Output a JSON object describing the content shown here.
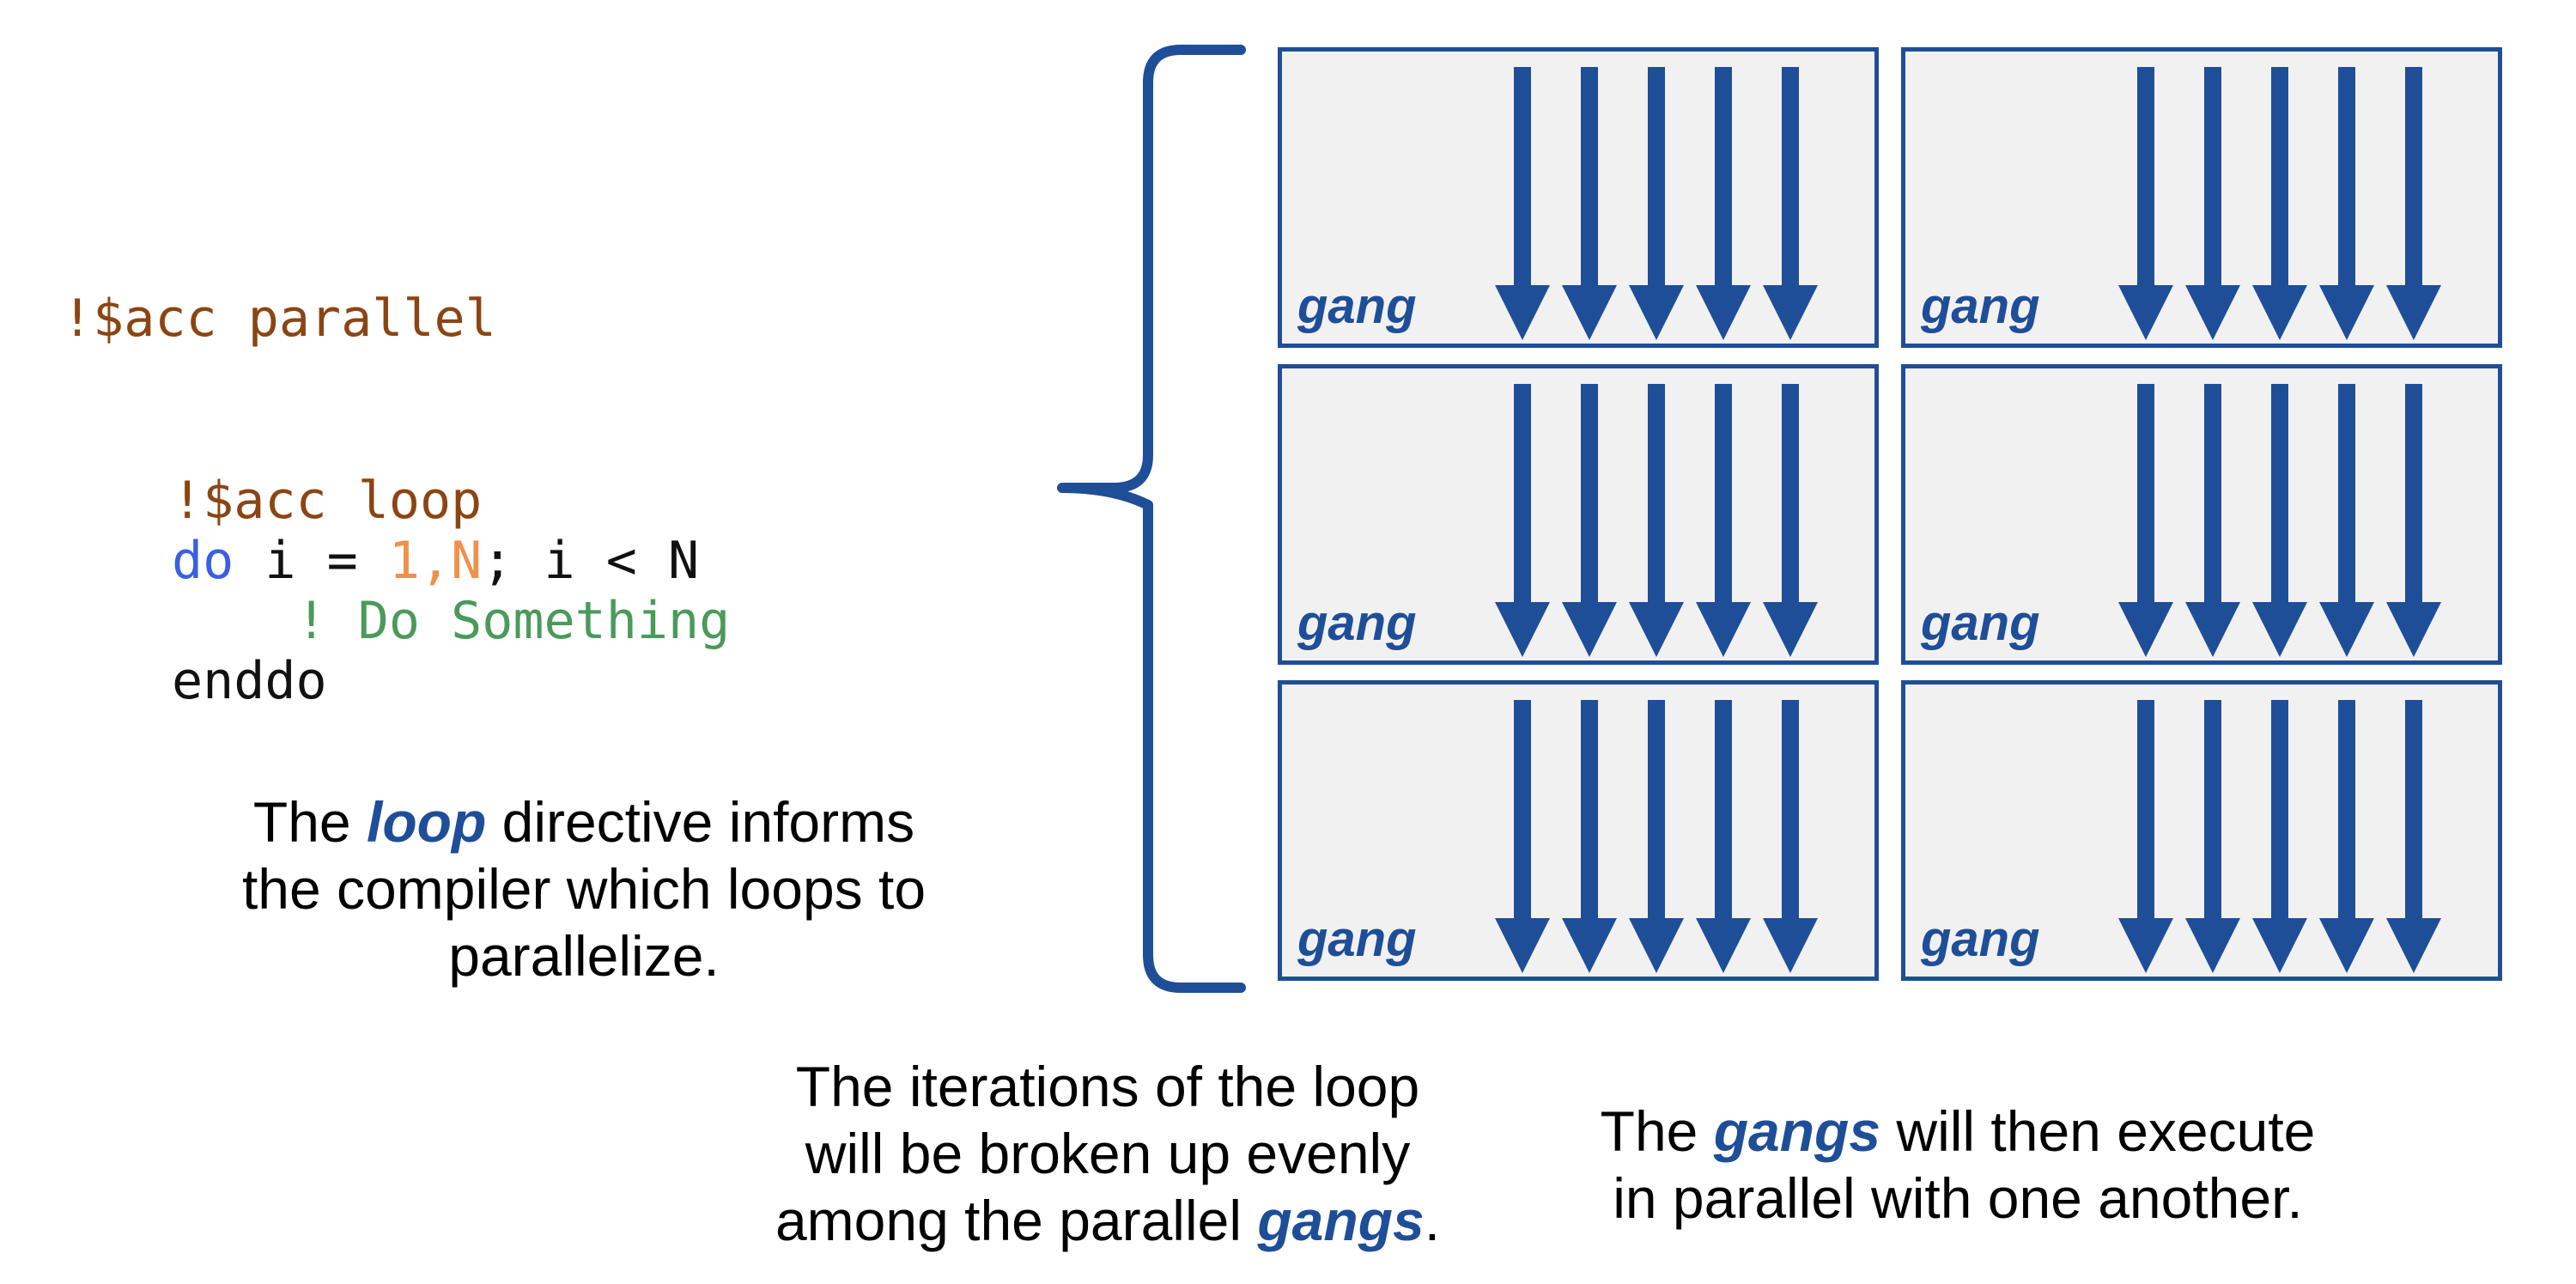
{
  "code": {
    "parallel_directive": "!$acc parallel",
    "loop_directive": "!$acc loop",
    "do_keyword": "do",
    "do_var": " i = ",
    "do_range": "1,N",
    "do_cond": "; i < N",
    "comment": "! Do Something",
    "enddo": "enddo"
  },
  "loop_caption": {
    "prefix": "The ",
    "emphasis": "loop",
    "suffix_line1": " directive informs",
    "line2": "the compiler which loops to",
    "line3": "parallelize."
  },
  "iterations_caption": {
    "line1": "The iterations of the loop",
    "line2": "will be broken up evenly",
    "line3_prefix": "among the parallel ",
    "emphasis": "gangs",
    "line3_suffix": "."
  },
  "gangs_caption": {
    "prefix": "The ",
    "emphasis": "gangs",
    "suffix_line1": " will then execute",
    "line2": "in parallel with one another."
  },
  "gangs": [
    {
      "label": "gang",
      "arrows": 5
    },
    {
      "label": "gang",
      "arrows": 5
    },
    {
      "label": "gang",
      "arrows": 5
    },
    {
      "label": "gang",
      "arrows": 5
    },
    {
      "label": "gang",
      "arrows": 5
    },
    {
      "label": "gang",
      "arrows": 5
    }
  ],
  "colors": {
    "accent": "#1f4e99",
    "box_fill": "#f1f1f1",
    "directive": "#8b4513",
    "keyword": "#3a5fe0",
    "number": "#f0904a",
    "comment": "#4a9a5a"
  }
}
